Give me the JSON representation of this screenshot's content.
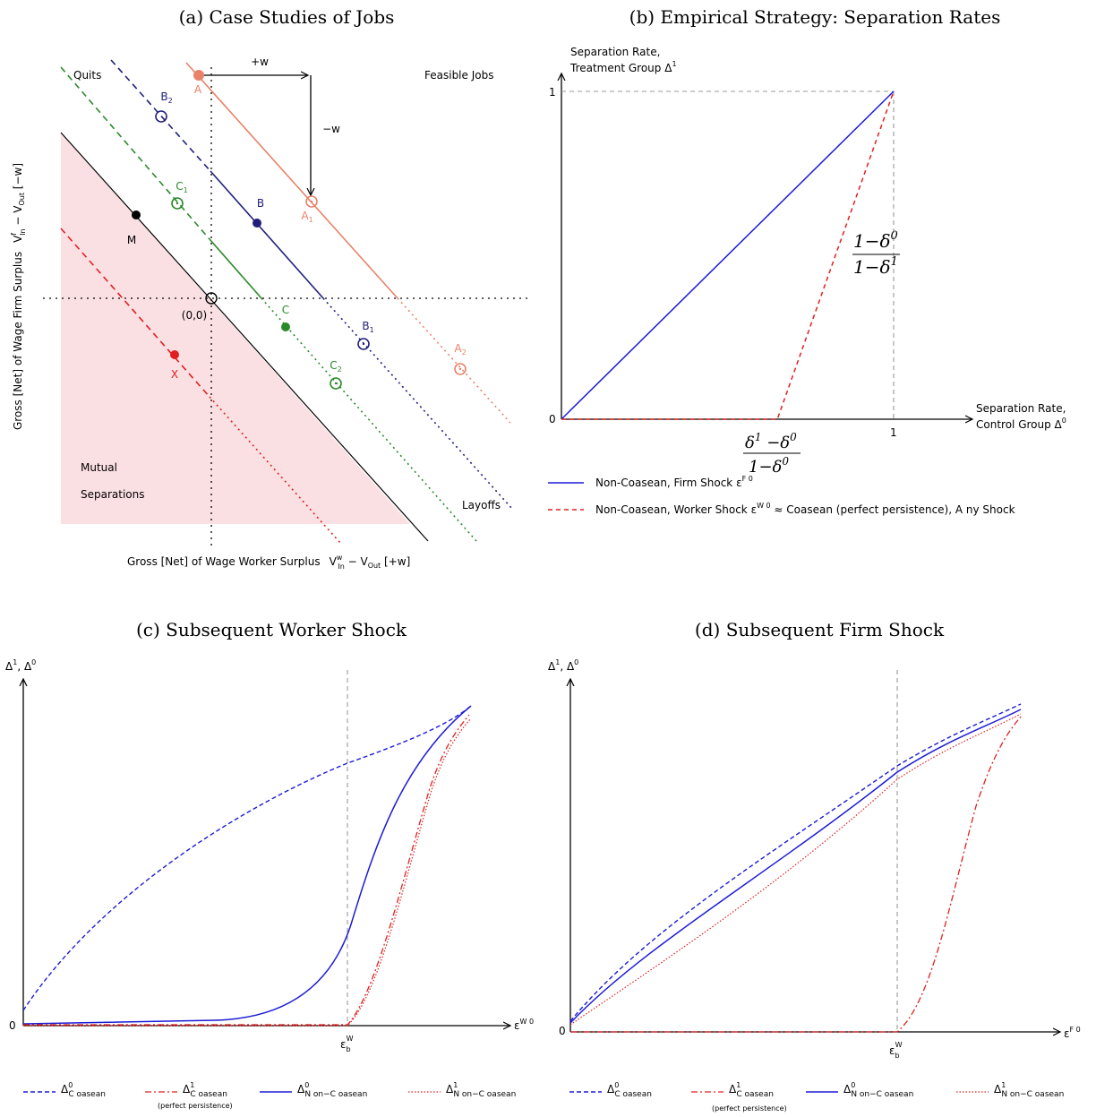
{
  "panel_a": {
    "title": "(a) Case Studies of Jobs",
    "ylabel": "Gross [Net] of Wage Firm Surplus",
    "ylabel_formula": "V",
    "y_sup_f": "f",
    "y_sub_in": "In",
    "y_minus": " − V",
    "y_sub_out": "Out",
    "y_wage": " [−w]",
    "xlabel": "Gross [Net] of Wage Worker Surplus",
    "x_formula": "V",
    "x_sup_w": "w",
    "x_sub_in": "In",
    "x_minus": " − V",
    "x_sub_out": "Out",
    "x_wage": " [+w]",
    "quits": "Quits",
    "feasible_jobs": "Feasible Jobs",
    "layoffs": "Layoffs",
    "mutual": "Mutual",
    "separations": "Separations",
    "origin": "(0,0)",
    "plus_w": "+w",
    "minus_w": "−w",
    "points": {
      "A": "A",
      "A1": "A",
      "A2": "A",
      "B": "B",
      "B1": "B",
      "B2": "B",
      "C": "C",
      "C1": "C",
      "C2": "C",
      "M": "M",
      "X": "X"
    },
    "subs": {
      "one": "1",
      "two": "2"
    },
    "colors": {
      "A": "#e8826a",
      "B": "#1f1f7a",
      "C": "#2a8a2a",
      "X": "#e02020",
      "region": "#fbe0e3"
    }
  },
  "panel_b": {
    "title": "(b) Empirical Strategy: Separation Rates",
    "ylabel_1": "Separation Rate,",
    "ylabel_2": "Treatment Group Δ",
    "ylabel_sup": "1",
    "xlabel_1": "Separation Rate,",
    "xlabel_2": "Control Group Δ",
    "xlabel_sup": "0",
    "tick_1y": "1",
    "tick_0": "0",
    "tick_1x": "1",
    "ratio_num": "1−δ",
    "ratio_num_sup": "0",
    "ratio_den": "1−δ",
    "ratio_den_sup": "1",
    "kink_num": "δ",
    "kink_num_sup": "1",
    "kink_num_rest": " −δ",
    "kink_num_sup2": "0",
    "kink_den": "1−δ",
    "kink_den_sup": "0",
    "legend_blue": "Non-Coasean, Firm Shock ε",
    "legend_blue_sup": "F 0",
    "legend_red": "Non-Coasean, Worker Shock ε",
    "legend_red_sup": "W 0",
    "legend_red_rest": " ≈ Coasean (perfect persistence), A ny Shock",
    "chart_data": {
      "type": "line",
      "xlim": [
        0,
        1
      ],
      "ylim": [
        0,
        1
      ],
      "series": [
        {
          "name": "Non-Coasean, Firm Shock ε F 0",
          "x": [
            0,
            1
          ],
          "y": [
            0,
            1
          ]
        },
        {
          "name": "Non-Coasean, Worker Shock ε W 0 ≈ Coasean (perfect persistence), A ny Shock",
          "x": [
            0,
            0.65,
            1
          ],
          "y": [
            0,
            0,
            1
          ]
        }
      ]
    }
  },
  "panel_c": {
    "title": "(c) Subsequent Worker Shock",
    "ylabel": "Δ",
    "ylabel_sup1": "1",
    "ylabel_mid": ", Δ",
    "ylabel_sup0": "0",
    "tick_0": "0",
    "xlabel": "ε",
    "xlabel_sup": "W 0",
    "eps_b": "ε",
    "eps_b_sub": "b",
    "eps_b_sup": "W",
    "legend": [
      {
        "delta": "Δ",
        "sup": "0",
        "sub": "C oasean",
        "note": ""
      },
      {
        "delta": "Δ",
        "sup": "1",
        "sub": "C oasean",
        "note": "(perfect persistence)"
      },
      {
        "delta": "Δ",
        "sup": "0",
        "sub": "N on−C oasean",
        "note": ""
      },
      {
        "delta": "Δ",
        "sup": "1",
        "sub": "N on−C oasean",
        "note": ""
      }
    ]
  },
  "panel_d": {
    "title": "(d) Subsequent Firm Shock",
    "ylabel": "Δ",
    "ylabel_sup1": "1",
    "ylabel_mid": ", Δ",
    "ylabel_sup0": "0",
    "tick_0": "0",
    "xlabel": "ε",
    "xlabel_sup": "F 0",
    "eps_b": "ε",
    "eps_b_sub": "b",
    "eps_b_sup": "W",
    "legend": [
      {
        "delta": "Δ",
        "sup": "0",
        "sub": "C oasean",
        "note": ""
      },
      {
        "delta": "Δ",
        "sup": "1",
        "sub": "C oasean",
        "note": "(perfect persistence)"
      },
      {
        "delta": "Δ",
        "sup": "0",
        "sub": "N on−C oasean",
        "note": ""
      },
      {
        "delta": "Δ",
        "sup": "1",
        "sub": "N on−C oasean",
        "note": ""
      }
    ]
  }
}
